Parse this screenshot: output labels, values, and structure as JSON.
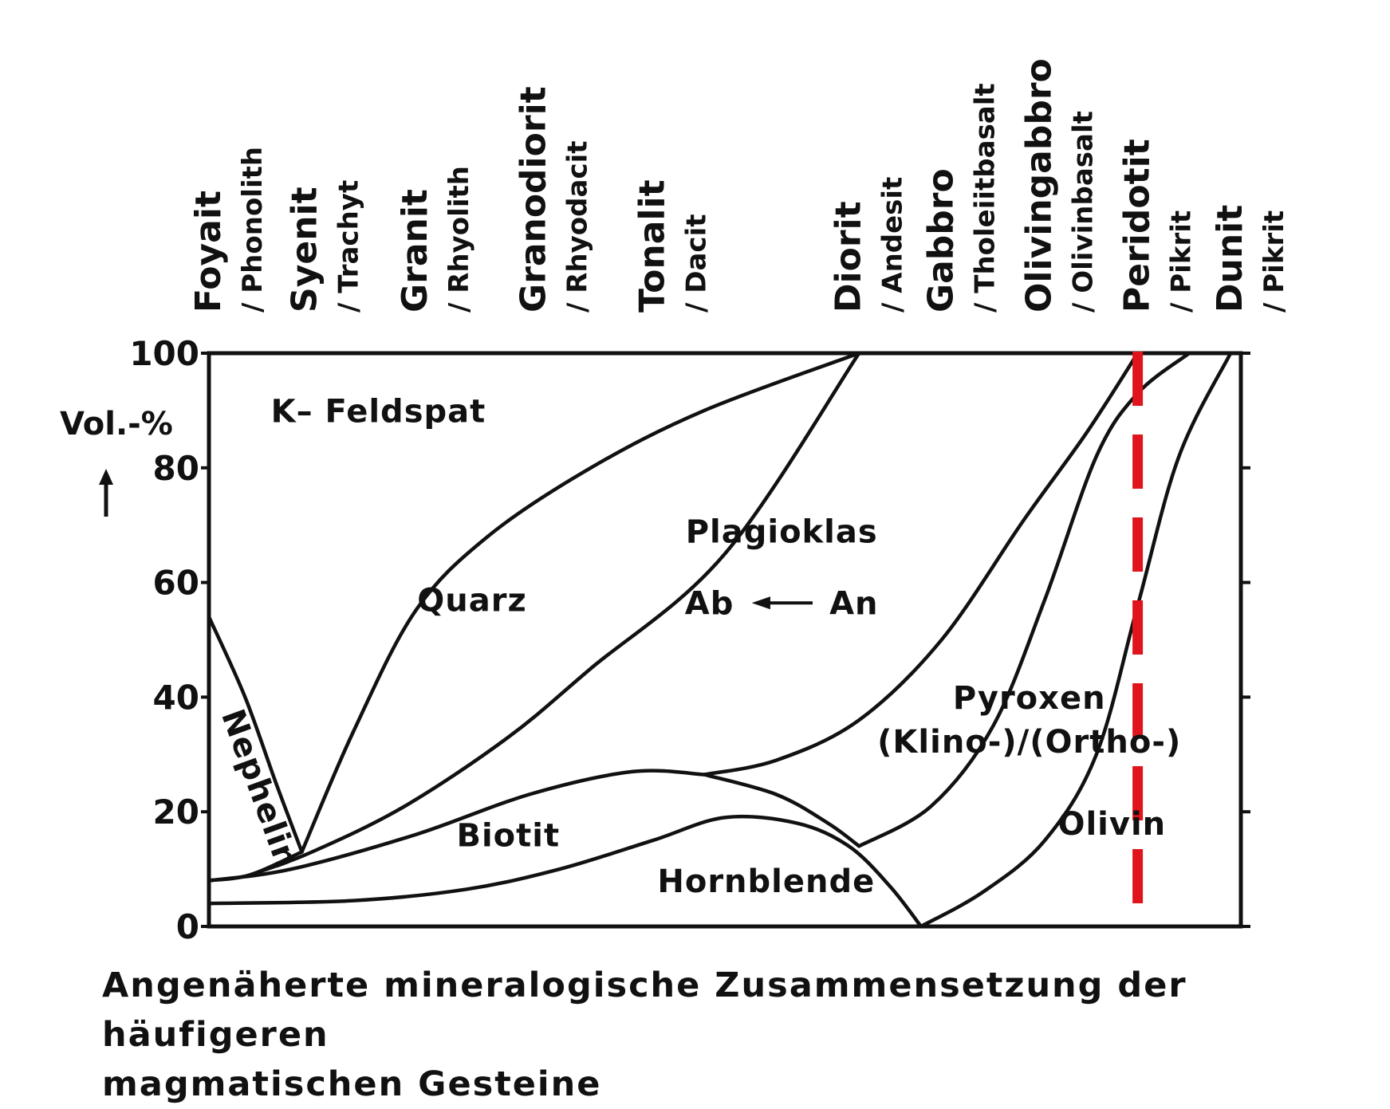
{
  "chart_data": {
    "type": "area",
    "ylabel": "Vol.-%",
    "ylim": [
      0,
      100
    ],
    "yticks": [
      0,
      20,
      40,
      60,
      80,
      100
    ],
    "caption_lines": [
      "Angenäherte mineralogische Zusammensetzung der häufigeren",
      "magmatischen Gesteine"
    ],
    "rocks": [
      {
        "main": "Foyait",
        "sub": "/ Phonolith",
        "x": 0
      },
      {
        "main": "Syenit",
        "sub": "/ Trachyt",
        "x": 9.3
      },
      {
        "main": "Granit",
        "sub": "/ Rhyolith",
        "x": 20
      },
      {
        "main": "Granodiorit",
        "sub": "/ Rhyodacit",
        "x": 31.5
      },
      {
        "main": "Tonalit",
        "sub": "/ Dacit",
        "x": 43
      },
      {
        "main": "Diorit",
        "sub": "/ Andesit",
        "x": 62
      },
      {
        "main": "Gabbro",
        "sub": "/ Tholeiitbasalt",
        "x": 71
      },
      {
        "main": "Olivingabbro",
        "sub": "/ Olivinbasalt",
        "x": 80.5
      },
      {
        "main": "Peridotit",
        "sub": "/ Pikrit",
        "x": 90
      },
      {
        "main": "Dunit",
        "sub": "/ Pikrit",
        "x": 99
      }
    ],
    "x_range": [
      0,
      100
    ],
    "regions": [
      {
        "name": "K-Feldspat",
        "label": "K– Feldspat"
      },
      {
        "name": "Nephelin",
        "label": "Nephelin"
      },
      {
        "name": "Quarz",
        "label": "Quarz"
      },
      {
        "name": "Plagioklas",
        "label": "Plagioklas",
        "sub_left": "Ab",
        "sub_right": "An"
      },
      {
        "name": "Biotit",
        "label": "Biotit"
      },
      {
        "name": "Hornblende",
        "label": "Hornblende"
      },
      {
        "name": "Pyroxen",
        "label": "Pyroxen",
        "sub": "(Klino-)/(Ortho-)"
      },
      {
        "name": "Olivin",
        "label": "Olivin"
      }
    ],
    "boundaries": [
      {
        "name": "nephelin-upper",
        "points": [
          [
            0,
            54
          ],
          [
            3.5,
            40
          ],
          [
            6.5,
            25
          ],
          [
            9,
            13
          ]
        ]
      },
      {
        "name": "nephelin-lower",
        "points": [
          [
            0,
            8
          ],
          [
            4,
            9
          ],
          [
            9,
            13
          ]
        ]
      },
      {
        "name": "quarz-upper",
        "points": [
          [
            9,
            13
          ],
          [
            14,
            34
          ],
          [
            20,
            55
          ],
          [
            27,
            68
          ],
          [
            37,
            80
          ],
          [
            48,
            90
          ],
          [
            63,
            100
          ]
        ]
      },
      {
        "name": "quarz-lower",
        "points": [
          [
            4,
            9
          ],
          [
            10,
            13
          ],
          [
            19,
            21
          ],
          [
            29,
            33
          ],
          [
            37,
            45
          ],
          [
            50,
            65
          ],
          [
            63,
            100
          ]
        ]
      },
      {
        "name": "biotit-upper",
        "points": [
          [
            0,
            8
          ],
          [
            8,
            10
          ],
          [
            20,
            16
          ],
          [
            31,
            23
          ],
          [
            41,
            27
          ],
          [
            48,
            26.5
          ]
        ]
      },
      {
        "name": "hornblende-upper",
        "points": [
          [
            0,
            4
          ],
          [
            14,
            4.5
          ],
          [
            25,
            6.5
          ],
          [
            34,
            10
          ],
          [
            43,
            15
          ],
          [
            50,
            19
          ],
          [
            57,
            18
          ],
          [
            62,
            14
          ],
          [
            66,
            7
          ],
          [
            69,
            0
          ]
        ]
      },
      {
        "name": "biotit-lower",
        "points": [
          [
            48,
            26.5
          ],
          [
            55,
            23
          ],
          [
            60,
            18
          ],
          [
            63,
            14
          ]
        ]
      },
      {
        "name": "plagioklas-lower",
        "points": [
          [
            48,
            26.5
          ],
          [
            55,
            29
          ],
          [
            63,
            36
          ],
          [
            71,
            50
          ],
          [
            79,
            71
          ],
          [
            85,
            86
          ],
          [
            90,
            100
          ]
        ]
      },
      {
        "name": "pyroxen-left",
        "points": [
          [
            63,
            14
          ],
          [
            70,
            21
          ],
          [
            76,
            35
          ],
          [
            81,
            57
          ],
          [
            86,
            82
          ],
          [
            90,
            93
          ],
          [
            95,
            100
          ]
        ]
      },
      {
        "name": "olivin-left",
        "points": [
          [
            69,
            0
          ],
          [
            75,
            6
          ],
          [
            81,
            15
          ],
          [
            86,
            30
          ],
          [
            90,
            56
          ],
          [
            94,
            82
          ],
          [
            99,
            100
          ]
        ]
      }
    ],
    "markers": [
      {
        "name": "Peridotit line",
        "x": 90,
        "color": "#e0141c",
        "style": "dashed"
      }
    ],
    "colors": {
      "ink": "#111111",
      "background": "#ffffff",
      "marker": "#e0141c"
    }
  }
}
